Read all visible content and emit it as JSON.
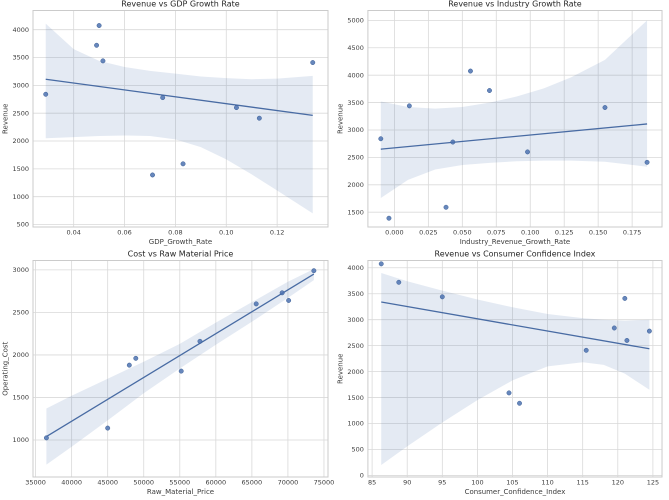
{
  "figure": {
    "background": "#ffffff",
    "grid_color": "#d9d9d9",
    "spine_color": "#cbcbcb",
    "point_color": "#4c72b0",
    "point_edge_color": "#3c5f96",
    "line_color": "#486ba3",
    "band_color": "#4c72b0",
    "band_opacity": 0.15,
    "title_color": "#262626",
    "label_color": "#3c3c3c",
    "tick_color": "#3c3c3c"
  },
  "chart_data": [
    {
      "id": "revenue-vs-gdp-growth",
      "type": "scatter",
      "title": "Revenue vs GDP Growth Rate",
      "xlabel": "GDP_Growth_Rate",
      "ylabel": "Revenue",
      "xlim": [
        0.024,
        0.14
      ],
      "ylim": [
        455,
        4345
      ],
      "grid": true,
      "xtick_values": [
        0.04,
        0.06,
        0.08,
        0.1,
        0.12
      ],
      "xtick_labels": [
        "0.04",
        "0.06",
        "0.08",
        "0.10",
        "0.12"
      ],
      "ytick_values": [
        500,
        1000,
        1500,
        2000,
        2500,
        3000,
        3500,
        4000
      ],
      "ytick_labels": [
        "500",
        "1000",
        "1500",
        "2000",
        "2500",
        "3000",
        "3500",
        "4000"
      ],
      "points": [
        [
          0.029,
          2840
        ],
        [
          0.049,
          3720
        ],
        [
          0.05,
          4075
        ],
        [
          0.0515,
          3440
        ],
        [
          0.071,
          1390
        ],
        [
          0.075,
          2780
        ],
        [
          0.083,
          1590
        ],
        [
          0.104,
          2600
        ],
        [
          0.113,
          2410
        ],
        [
          0.134,
          3410
        ]
      ],
      "regression_line": {
        "x1": 0.029,
        "y1": 3110,
        "x2": 0.134,
        "y2": 2460
      },
      "confidence_band": {
        "x": [
          0.029,
          0.04,
          0.05,
          0.06,
          0.07,
          0.08,
          0.09,
          0.1,
          0.11,
          0.12,
          0.134
        ],
        "upper": [
          4110,
          3650,
          3440,
          3330,
          3260,
          3210,
          3160,
          3130,
          3110,
          3120,
          3170
        ],
        "lower": [
          2050,
          2070,
          2090,
          2100,
          2090,
          2030,
          1890,
          1670,
          1400,
          1110,
          700
        ]
      }
    },
    {
      "id": "revenue-vs-industry-growth",
      "type": "scatter",
      "title": "Revenue vs Industry Growth Rate",
      "xlabel": "Industry_Revenue_Growth_Rate",
      "ylabel": "Revenue",
      "xlim": [
        -0.0195,
        0.197
      ],
      "ylim": [
        1230,
        5180
      ],
      "grid": true,
      "xtick_values": [
        0.0,
        0.025,
        0.05,
        0.075,
        0.1,
        0.125,
        0.15,
        0.175
      ],
      "xtick_labels": [
        "0.000",
        "0.025",
        "0.050",
        "0.075",
        "0.100",
        "0.125",
        "0.150",
        "0.175"
      ],
      "ytick_values": [
        1500,
        2000,
        2500,
        3000,
        3500,
        4000,
        4500,
        5000
      ],
      "ytick_labels": [
        "1500",
        "2000",
        "2500",
        "3000",
        "3500",
        "4000",
        "4500",
        "5000"
      ],
      "points": [
        [
          -0.01,
          2840
        ],
        [
          -0.004,
          1390
        ],
        [
          0.011,
          3440
        ],
        [
          0.038,
          1590
        ],
        [
          0.043,
          2780
        ],
        [
          0.056,
          4075
        ],
        [
          0.07,
          3720
        ],
        [
          0.098,
          2600
        ],
        [
          0.155,
          3410
        ],
        [
          0.186,
          2410
        ]
      ],
      "regression_line": {
        "x1": -0.01,
        "y1": 2650,
        "x2": 0.186,
        "y2": 3110
      },
      "confidence_band": {
        "x": [
          -0.01,
          0.01,
          0.03,
          0.05,
          0.07,
          0.09,
          0.11,
          0.13,
          0.155,
          0.186
        ],
        "upper": [
          3520,
          3420,
          3390,
          3420,
          3500,
          3610,
          3760,
          3960,
          4280,
          5000
        ],
        "lower": [
          1760,
          2090,
          2280,
          2360,
          2400,
          2430,
          2440,
          2440,
          2420,
          2330
        ]
      }
    },
    {
      "id": "cost-vs-raw-material-price",
      "type": "scatter",
      "title": "Cost vs Raw Material Price",
      "xlabel": "Raw_Material_Price",
      "ylabel": "Operating_Cost",
      "xlim": [
        34640,
        75560
      ],
      "ylim": [
        565,
        3110
      ],
      "grid": true,
      "xtick_values": [
        35000,
        40000,
        45000,
        50000,
        55000,
        60000,
        65000,
        70000,
        75000
      ],
      "xtick_labels": [
        "35000",
        "40000",
        "45000",
        "50000",
        "55000",
        "60000",
        "65000",
        "70000",
        "75000"
      ],
      "ytick_values": [
        1000,
        1500,
        2000,
        2500,
        3000
      ],
      "ytick_labels": [
        "1000",
        "1500",
        "2000",
        "2500",
        "3000"
      ],
      "points": [
        [
          36500,
          1025
        ],
        [
          45000,
          1140
        ],
        [
          48000,
          1880
        ],
        [
          48900,
          1960
        ],
        [
          55200,
          1810
        ],
        [
          57800,
          2160
        ],
        [
          65600,
          2600
        ],
        [
          69200,
          2730
        ],
        [
          70100,
          2640
        ],
        [
          73600,
          2990
        ]
      ],
      "regression_line": {
        "x1": 36500,
        "y1": 1040,
        "x2": 73600,
        "y2": 2950
      },
      "confidence_band": {
        "x": [
          36500,
          40000,
          45000,
          50000,
          55000,
          60000,
          65000,
          70000,
          73600
        ],
        "upper": [
          1370,
          1520,
          1720,
          1920,
          2130,
          2380,
          2620,
          2860,
          3010
        ],
        "lower": [
          710,
          920,
          1230,
          1550,
          1840,
          2120,
          2390,
          2670,
          2880
        ]
      }
    },
    {
      "id": "revenue-vs-consumer-confidence",
      "type": "scatter",
      "title": "Revenue vs Consumer Confidence Index",
      "xlabel": "Consumer_Confidence_Index",
      "ylabel": "Revenue",
      "xlim": [
        84.4,
        126.3
      ],
      "ylim": [
        -30,
        4140
      ],
      "grid": true,
      "xtick_values": [
        85,
        90,
        95,
        100,
        105,
        110,
        115,
        120,
        125
      ],
      "xtick_labels": [
        "85",
        "90",
        "95",
        "100",
        "105",
        "110",
        "115",
        "120",
        "125"
      ],
      "ytick_values": [
        0,
        500,
        1000,
        1500,
        2000,
        2500,
        3000,
        3500,
        4000
      ],
      "ytick_labels": [
        "0",
        "500",
        "1000",
        "1500",
        "2000",
        "2500",
        "3000",
        "3500",
        "4000"
      ],
      "points": [
        [
          86.3,
          4075
        ],
        [
          88.8,
          3720
        ],
        [
          95.0,
          3440
        ],
        [
          104.5,
          1590
        ],
        [
          106.0,
          1390
        ],
        [
          115.5,
          2410
        ],
        [
          119.5,
          2840
        ],
        [
          121.0,
          3410
        ],
        [
          121.3,
          2600
        ],
        [
          124.5,
          2780
        ]
      ],
      "regression_line": {
        "x1": 86.3,
        "y1": 3340,
        "x2": 124.5,
        "y2": 2440
      },
      "confidence_band": {
        "x": [
          86.3,
          90,
          95,
          100,
          105,
          110,
          115,
          118,
          121,
          124.5
        ],
        "upper": [
          3900,
          3740,
          3560,
          3390,
          3240,
          3110,
          3030,
          3000,
          2980,
          3000
        ],
        "lower": [
          200,
          560,
          1020,
          1450,
          1830,
          2100,
          2180,
          2130,
          1960,
          1650
        ]
      }
    }
  ]
}
